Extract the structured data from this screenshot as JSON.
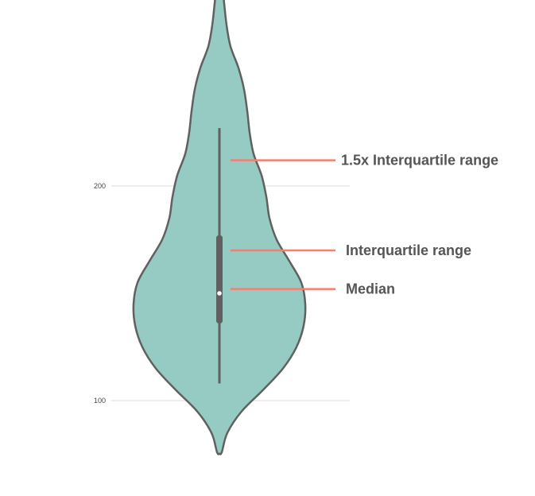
{
  "chart_data": {
    "type": "violin",
    "ylim": [
      75,
      297
    ],
    "yticks": [
      {
        "value": 100,
        "label": "100"
      },
      {
        "value": 200,
        "label": "200"
      }
    ],
    "grid": true,
    "colors": {
      "violin_fill": "#96cbc3",
      "violin_edge": "#606060",
      "box": "#606060",
      "median_dot": "#ffffff",
      "annotation_line": "#f08070",
      "grid": "#dddddd",
      "annotation_text": "#555555"
    },
    "density_profile": [
      {
        "y": 76,
        "half_width": 3
      },
      {
        "y": 85,
        "half_width": 10
      },
      {
        "y": 95,
        "half_width": 28
      },
      {
        "y": 105,
        "half_width": 55
      },
      {
        "y": 115,
        "half_width": 80
      },
      {
        "y": 125,
        "half_width": 97
      },
      {
        "y": 135,
        "half_width": 106
      },
      {
        "y": 145,
        "half_width": 108
      },
      {
        "y": 155,
        "half_width": 103
      },
      {
        "y": 165,
        "half_width": 88
      },
      {
        "y": 175,
        "half_width": 72
      },
      {
        "y": 185,
        "half_width": 63
      },
      {
        "y": 195,
        "half_width": 59
      },
      {
        "y": 205,
        "half_width": 53
      },
      {
        "y": 215,
        "half_width": 43
      },
      {
        "y": 225,
        "half_width": 38
      },
      {
        "y": 235,
        "half_width": 35
      },
      {
        "y": 245,
        "half_width": 31
      },
      {
        "y": 255,
        "half_width": 24
      },
      {
        "y": 265,
        "half_width": 14
      },
      {
        "y": 275,
        "half_width": 9
      },
      {
        "y": 285,
        "half_width": 6
      },
      {
        "y": 295,
        "half_width": 3
      }
    ],
    "stats": {
      "whisker_low": 108,
      "q1": 136,
      "median": 150,
      "q3": 177,
      "whisker_high": 227
    },
    "annotations": [
      {
        "text": "1.5x Interquartile range",
        "y": 212
      },
      {
        "text": "Interquartile range",
        "y": 170
      },
      {
        "text": "Median",
        "y": 152
      }
    ]
  }
}
